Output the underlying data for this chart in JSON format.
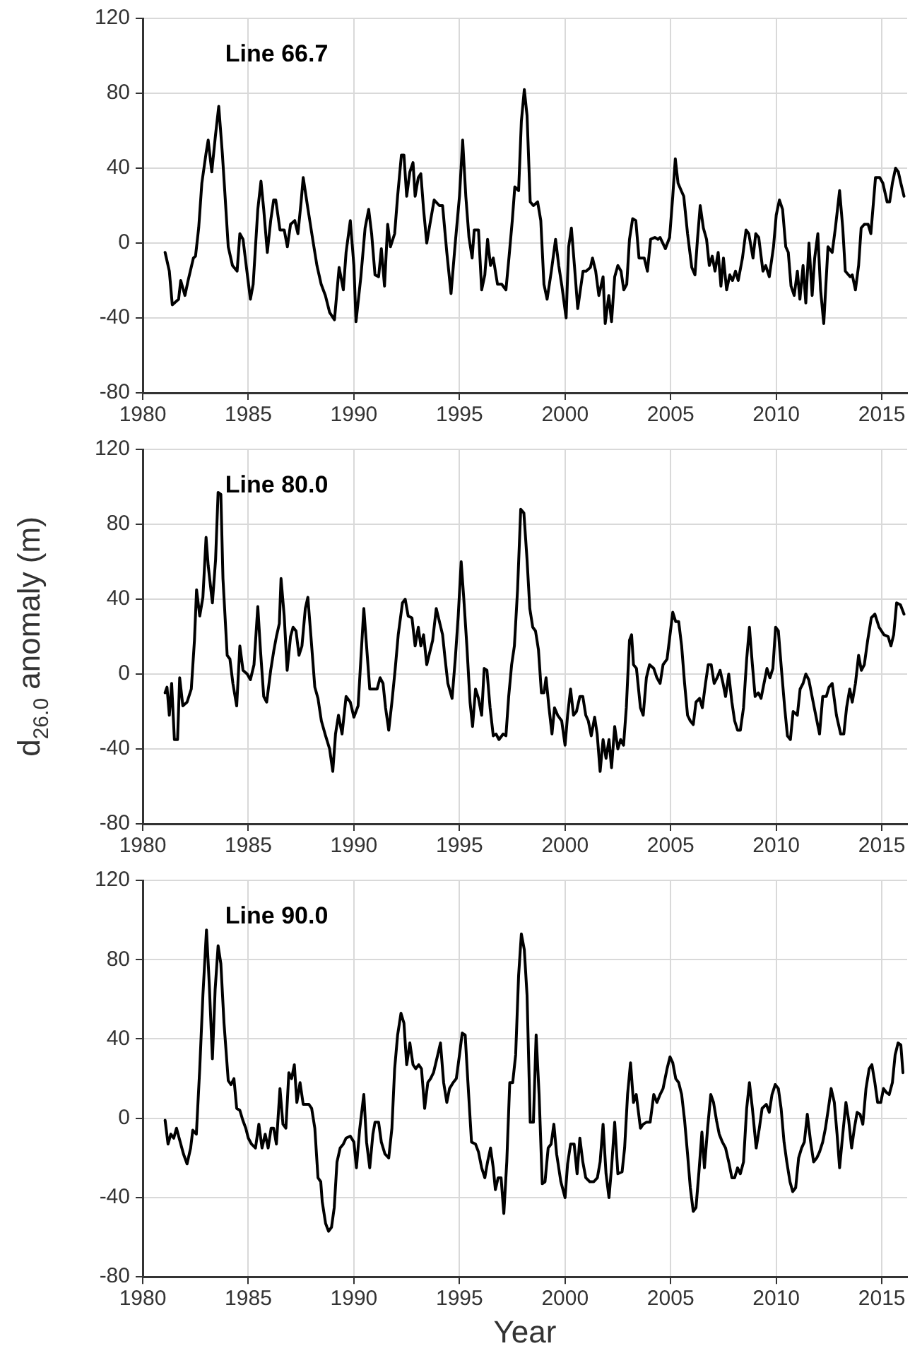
{
  "chart_data": [
    {
      "type": "line",
      "title": "Line 66.7",
      "xlim": [
        1980,
        2016.2
      ],
      "ylim": [
        -80,
        120
      ],
      "xticks": [
        1980,
        1985,
        1990,
        1995,
        2000,
        2005,
        2010,
        2015
      ],
      "yticks": [
        -80,
        -40,
        0,
        40,
        80,
        120
      ],
      "grid": true,
      "series": [
        {
          "color": "#000000",
          "x": [
            1981.06,
            1981.26,
            1981.4,
            1981.7,
            1981.8,
            1982.0,
            1982.15,
            1982.4,
            1982.5,
            1982.65,
            1982.8,
            1983.0,
            1983.1,
            1983.27,
            1983.45,
            1983.6,
            1983.77,
            1983.9,
            1984.05,
            1984.25,
            1984.47,
            1984.6,
            1984.75,
            1984.9,
            1985.1,
            1985.23,
            1985.45,
            1985.6,
            1985.73,
            1985.9,
            1986.06,
            1986.2,
            1986.3,
            1986.5,
            1986.7,
            1986.85,
            1987.0,
            1987.2,
            1987.35,
            1987.5,
            1987.6,
            1987.8,
            1988.05,
            1988.25,
            1988.45,
            1988.65,
            1988.85,
            1989.08,
            1989.3,
            1989.5,
            1989.63,
            1989.83,
            1990.0,
            1990.1,
            1990.33,
            1990.53,
            1990.7,
            1990.84,
            1991.0,
            1991.17,
            1991.3,
            1991.45,
            1991.6,
            1991.73,
            1991.93,
            1992.07,
            1992.25,
            1992.37,
            1992.5,
            1992.65,
            1992.8,
            1992.9,
            1993.05,
            1993.17,
            1993.3,
            1993.45,
            1993.6,
            1993.8,
            1994.05,
            1994.2,
            1994.4,
            1994.6,
            1994.8,
            1995.0,
            1995.15,
            1995.3,
            1995.45,
            1995.6,
            1995.7,
            1995.9,
            1996.05,
            1996.2,
            1996.33,
            1996.47,
            1996.6,
            1996.8,
            1997.0,
            1997.2,
            1997.35,
            1997.5,
            1997.62,
            1997.8,
            1997.93,
            1998.07,
            1998.2,
            1998.35,
            1998.5,
            1998.7,
            1998.85,
            1999.0,
            1999.15,
            1999.35,
            1999.55,
            1999.7,
            1999.85,
            2000.05,
            2000.17,
            2000.3,
            2000.45,
            2000.6,
            2000.85,
            2001.0,
            2001.2,
            2001.3,
            2001.45,
            2001.6,
            2001.8,
            2001.9,
            2002.07,
            2002.2,
            2002.35,
            2002.5,
            2002.65,
            2002.78,
            2002.92,
            2003.05,
            2003.2,
            2003.35,
            2003.5,
            2003.75,
            2003.9,
            2004.05,
            2004.25,
            2004.4,
            2004.5,
            2004.75,
            2004.95,
            2005.1,
            2005.22,
            2005.35,
            2005.5,
            2005.62,
            2005.8,
            2006.0,
            2006.15,
            2006.27,
            2006.4,
            2006.55,
            2006.7,
            2006.83,
            2006.97,
            2007.1,
            2007.25,
            2007.38,
            2007.5,
            2007.65,
            2007.8,
            2007.93,
            2008.07,
            2008.2,
            2008.4,
            2008.57,
            2008.7,
            2008.9,
            2009.03,
            2009.17,
            2009.37,
            2009.5,
            2009.67,
            2009.87,
            2010.0,
            2010.15,
            2010.3,
            2010.45,
            2010.57,
            2010.7,
            2010.85,
            2011.0,
            2011.12,
            2011.27,
            2011.4,
            2011.55,
            2011.7,
            2011.82,
            2011.97,
            2012.1,
            2012.25,
            2012.45,
            2012.65,
            2012.8,
            2013.0,
            2013.15,
            2013.27,
            2013.5,
            2013.6,
            2013.75,
            2013.9,
            2014.02,
            2014.17,
            2014.35,
            2014.48,
            2014.7,
            2014.9,
            2015.05,
            2015.25,
            2015.37,
            2015.5,
            2015.65,
            2015.78,
            2015.9,
            2016.05
          ],
          "values": [
            -5,
            -15,
            -33,
            -30,
            -20,
            -28,
            -20,
            -8,
            -7,
            8,
            32,
            48,
            55,
            38,
            58,
            73,
            48,
            25,
            -2,
            -12,
            -15,
            5,
            2,
            -12,
            -30,
            -22,
            18,
            33,
            18,
            -5,
            12,
            23,
            23,
            7,
            7,
            -2,
            10,
            12,
            5,
            22,
            35,
            20,
            2,
            -12,
            -22,
            -28,
            -37,
            -41,
            -13,
            -25,
            -5,
            12,
            -12,
            -42,
            -18,
            8,
            18,
            5,
            -17,
            -18,
            -3,
            -23,
            10,
            -2,
            5,
            25,
            47,
            47,
            25,
            38,
            43,
            25,
            35,
            37,
            18,
            0,
            10,
            23,
            20,
            20,
            -5,
            -27,
            0,
            25,
            55,
            25,
            3,
            -8,
            7,
            7,
            -25,
            -17,
            2,
            -12,
            -8,
            -22,
            -22,
            -25,
            -7,
            12,
            30,
            28,
            65,
            82,
            68,
            22,
            20,
            22,
            12,
            -22,
            -30,
            -15,
            2,
            -12,
            -23,
            -40,
            -2,
            8,
            -13,
            -35,
            -15,
            -15,
            -13,
            -8,
            -15,
            -28,
            -18,
            -43,
            -28,
            -42,
            -18,
            -12,
            -15,
            -25,
            -22,
            2,
            13,
            12,
            -8,
            -8,
            -15,
            2,
            3,
            2,
            3,
            -3,
            3,
            25,
            45,
            32,
            28,
            25,
            5,
            -13,
            -17,
            2,
            20,
            8,
            2,
            -12,
            -7,
            -15,
            -5,
            -23,
            -8,
            -25,
            -17,
            -20,
            -15,
            -20,
            -8,
            7,
            5,
            -8,
            5,
            3,
            -15,
            -12,
            -18,
            -2,
            15,
            23,
            18,
            -2,
            -5,
            -23,
            -28,
            -15,
            -30,
            -12,
            -32,
            0,
            -28,
            -8,
            5,
            -25,
            -43,
            -2,
            -5,
            8,
            28,
            8,
            -15,
            -18,
            -17,
            -25,
            -12,
            8,
            10,
            10,
            5,
            35,
            35,
            32,
            22,
            22,
            32,
            40,
            38,
            32,
            25
          ]
        }
      ]
    },
    {
      "type": "line",
      "title": "Line 80.0",
      "ylabel": "d$_{26.0}$ anomaly (m)",
      "xlim": [
        1980,
        2016.2
      ],
      "ylim": [
        -80,
        120
      ],
      "xticks": [
        1980,
        1985,
        1990,
        1995,
        2000,
        2005,
        2010,
        2015
      ],
      "yticks": [
        -80,
        -40,
        0,
        40,
        80,
        120
      ],
      "grid": true,
      "series": [
        {
          "color": "#000000",
          "x": [
            1981.06,
            1981.15,
            1981.26,
            1981.37,
            1981.5,
            1981.65,
            1981.75,
            1981.9,
            1982.1,
            1982.3,
            1982.45,
            1982.55,
            1982.7,
            1982.85,
            1983.0,
            1983.1,
            1983.3,
            1983.45,
            1983.57,
            1983.7,
            1983.8,
            1984.0,
            1984.13,
            1984.27,
            1984.45,
            1984.6,
            1984.75,
            1984.95,
            1985.1,
            1985.27,
            1985.45,
            1985.58,
            1985.73,
            1985.87,
            1986.06,
            1986.2,
            1986.33,
            1986.47,
            1986.55,
            1986.7,
            1986.84,
            1987.0,
            1987.12,
            1987.26,
            1987.4,
            1987.54,
            1987.7,
            1987.82,
            1987.96,
            1988.15,
            1988.3,
            1988.46,
            1988.66,
            1988.85,
            1989.0,
            1989.13,
            1989.27,
            1989.44,
            1989.63,
            1989.83,
            1990.0,
            1990.2,
            1990.33,
            1990.47,
            1990.6,
            1990.75,
            1990.95,
            1991.1,
            1991.24,
            1991.38,
            1991.5,
            1991.65,
            1991.8,
            1991.95,
            1992.1,
            1992.3,
            1992.43,
            1992.57,
            1992.75,
            1992.9,
            1993.05,
            1993.17,
            1993.3,
            1993.45,
            1993.6,
            1993.73,
            1993.9,
            1994.05,
            1994.2,
            1994.32,
            1994.45,
            1994.65,
            1994.8,
            1994.94,
            1995.08,
            1995.2,
            1995.35,
            1995.5,
            1995.62,
            1995.76,
            1995.9,
            1996.05,
            1996.17,
            1996.3,
            1996.45,
            1996.6,
            1996.73,
            1996.87,
            1997.07,
            1997.2,
            1997.33,
            1997.47,
            1997.6,
            1997.75,
            1997.9,
            1998.05,
            1998.2,
            1998.33,
            1998.47,
            1998.6,
            1998.74,
            1998.88,
            1999.0,
            1999.1,
            1999.24,
            1999.38,
            1999.5,
            1999.65,
            1999.84,
            2000.0,
            2000.12,
            2000.26,
            2000.4,
            2000.54,
            2000.7,
            2000.84,
            2000.98,
            2001.1,
            2001.24,
            2001.4,
            2001.52,
            2001.66,
            2001.8,
            2001.94,
            2002.08,
            2002.2,
            2002.35,
            2002.5,
            2002.63,
            2002.77,
            2002.9,
            2003.05,
            2003.15,
            2003.24,
            2003.38,
            2003.57,
            2003.7,
            2003.85,
            2004.0,
            2004.2,
            2004.35,
            2004.5,
            2004.64,
            2004.83,
            2004.97,
            2005.1,
            2005.24,
            2005.38,
            2005.52,
            2005.66,
            2005.8,
            2005.93,
            2006.07,
            2006.2,
            2006.37,
            2006.5,
            2006.65,
            2006.78,
            2006.92,
            2007.06,
            2007.2,
            2007.34,
            2007.48,
            2007.6,
            2007.75,
            2007.9,
            2008.03,
            2008.17,
            2008.3,
            2008.45,
            2008.6,
            2008.73,
            2008.87,
            2009.0,
            2009.15,
            2009.28,
            2009.42,
            2009.56,
            2009.7,
            2009.84,
            2009.97,
            2010.1,
            2010.25,
            2010.4,
            2010.53,
            2010.67,
            2010.8,
            2011.0,
            2011.13,
            2011.27,
            2011.4,
            2011.54,
            2011.8,
            2012.05,
            2012.2,
            2012.37,
            2012.5,
            2012.65,
            2012.85,
            2013.05,
            2013.2,
            2013.33,
            2013.48,
            2013.6,
            2013.75,
            2013.9,
            2014.03,
            2014.17,
            2014.33,
            2014.5,
            2014.67,
            2014.87,
            2015.1,
            2015.3,
            2015.43,
            2015.56,
            2015.7,
            2015.88,
            2016.05
          ],
          "values": [
            -10,
            -7,
            -22,
            -5,
            -35,
            -35,
            -2,
            -17,
            -15,
            -8,
            18,
            45,
            31,
            41,
            73,
            58,
            38,
            61,
            97,
            96,
            51,
            10,
            8,
            -5,
            -17,
            15,
            2,
            0,
            -3,
            5,
            36,
            12,
            -12,
            -15,
            2,
            12,
            20,
            27,
            51,
            31,
            2,
            20,
            25,
            23,
            10,
            15,
            35,
            41,
            21,
            -7,
            -13,
            -25,
            -33,
            -40,
            -52,
            -32,
            -22,
            -32,
            -12,
            -15,
            -23,
            -17,
            8,
            35,
            15,
            -8,
            -8,
            -8,
            -2,
            -5,
            -18,
            -30,
            -15,
            2,
            21,
            38,
            40,
            31,
            30,
            15,
            25,
            15,
            21,
            5,
            12,
            18,
            35,
            28,
            21,
            8,
            -5,
            -13,
            8,
            31,
            60,
            41,
            15,
            -15,
            -28,
            -8,
            -13,
            -22,
            3,
            2,
            -18,
            -33,
            -32,
            -35,
            -32,
            -33,
            -12,
            5,
            15,
            45,
            88,
            86,
            61,
            35,
            25,
            23,
            13,
            -10,
            -10,
            -2,
            -18,
            -32,
            -18,
            -22,
            -25,
            -38,
            -22,
            -8,
            -22,
            -20,
            -12,
            -12,
            -22,
            -25,
            -33,
            -23,
            -32,
            -52,
            -35,
            -45,
            -35,
            -50,
            -28,
            -40,
            -35,
            -38,
            -18,
            18,
            21,
            5,
            3,
            -18,
            -22,
            -2,
            5,
            3,
            -2,
            -5,
            5,
            8,
            21,
            33,
            28,
            28,
            15,
            -5,
            -22,
            -25,
            -27,
            -15,
            -13,
            -18,
            -5,
            5,
            5,
            -5,
            -2,
            2,
            -5,
            -12,
            0,
            -15,
            -25,
            -30,
            -30,
            -18,
            8,
            25,
            5,
            -12,
            -10,
            -13,
            -5,
            3,
            -2,
            3,
            25,
            23,
            2,
            -18,
            -33,
            -35,
            -20,
            -22,
            -8,
            -5,
            0,
            -3,
            -18,
            -32,
            -12,
            -12,
            -7,
            -5,
            -22,
            -32,
            -32,
            -18,
            -8,
            -15,
            -5,
            10,
            2,
            5,
            18,
            30,
            32,
            25,
            21,
            20,
            15,
            21,
            38,
            37,
            32
          ]
        }
      ]
    },
    {
      "type": "line",
      "title": "Line 90.0",
      "xlabel": "Year",
      "xlim": [
        1980,
        2016.2
      ],
      "ylim": [
        -80,
        120
      ],
      "xticks": [
        1980,
        1985,
        1990,
        1995,
        2000,
        2005,
        2010,
        2015
      ],
      "yticks": [
        -80,
        -40,
        0,
        40,
        80,
        120
      ],
      "grid": true,
      "series": [
        {
          "color": "#000000",
          "x": [
            1981.06,
            1981.2,
            1981.33,
            1981.47,
            1981.6,
            1981.75,
            1981.93,
            1982.1,
            1982.27,
            1982.37,
            1982.54,
            1982.7,
            1982.85,
            1983.02,
            1983.15,
            1983.3,
            1983.43,
            1983.57,
            1983.7,
            1983.85,
            1984.05,
            1984.18,
            1984.32,
            1984.45,
            1984.6,
            1984.74,
            1984.88,
            1985.0,
            1985.15,
            1985.34,
            1985.5,
            1985.65,
            1985.8,
            1985.94,
            1986.08,
            1986.2,
            1986.33,
            1986.5,
            1986.64,
            1986.78,
            1986.92,
            1987.05,
            1987.18,
            1987.3,
            1987.45,
            1987.6,
            1987.73,
            1987.87,
            1988.0,
            1988.15,
            1988.3,
            1988.43,
            1988.5,
            1988.66,
            1988.8,
            1988.94,
            1989.07,
            1989.2,
            1989.35,
            1989.5,
            1989.63,
            1989.83,
            1990.0,
            1990.12,
            1990.27,
            1990.47,
            1990.6,
            1990.75,
            1990.9,
            1991.0,
            1991.17,
            1991.3,
            1991.47,
            1991.65,
            1991.8,
            1991.93,
            1992.07,
            1992.23,
            1992.37,
            1992.5,
            1992.65,
            1992.8,
            1992.93,
            1993.07,
            1993.2,
            1993.35,
            1993.5,
            1993.63,
            1993.77,
            1993.97,
            1994.1,
            1994.25,
            1994.4,
            1994.53,
            1994.7,
            1994.85,
            1995.0,
            1995.13,
            1995.27,
            1995.4,
            1995.57,
            1995.76,
            1995.9,
            1996.05,
            1996.2,
            1996.33,
            1996.47,
            1996.6,
            1996.7,
            1996.83,
            1996.97,
            1997.1,
            1997.24,
            1997.38,
            1997.52,
            1997.66,
            1997.8,
            1997.93,
            1998.07,
            1998.2,
            1998.35,
            1998.5,
            1998.63,
            1998.77,
            1998.92,
            1999.05,
            1999.2,
            1999.34,
            1999.47,
            1999.6,
            1999.8,
            2000.0,
            2000.12,
            2000.26,
            2000.43,
            2000.57,
            2000.7,
            2000.84,
            2000.98,
            2001.17,
            2001.36,
            2001.53,
            2001.66,
            2001.8,
            2001.94,
            2002.08,
            2002.2,
            2002.35,
            2002.5,
            2002.7,
            2002.82,
            2002.96,
            2003.1,
            2003.24,
            2003.37,
            2003.57,
            2003.7,
            2003.85,
            2004.03,
            2004.2,
            2004.35,
            2004.5,
            2004.64,
            2004.83,
            2004.97,
            2005.1,
            2005.24,
            2005.38,
            2005.52,
            2005.66,
            2005.8,
            2005.93,
            2006.07,
            2006.2,
            2006.34,
            2006.48,
            2006.6,
            2006.75,
            2006.9,
            2007.03,
            2007.17,
            2007.3,
            2007.45,
            2007.6,
            2007.75,
            2007.9,
            2008.03,
            2008.17,
            2008.3,
            2008.45,
            2008.6,
            2008.73,
            2008.87,
            2009.05,
            2009.2,
            2009.33,
            2009.53,
            2009.67,
            2009.8,
            2009.95,
            2010.1,
            2010.23,
            2010.37,
            2010.5,
            2010.65,
            2010.78,
            2010.92,
            2011.06,
            2011.2,
            2011.33,
            2011.47,
            2011.63,
            2011.77,
            2011.92,
            2012.05,
            2012.2,
            2012.33,
            2012.47,
            2012.6,
            2012.75,
            2012.88,
            2013.0,
            2013.15,
            2013.3,
            2013.43,
            2013.57,
            2013.7,
            2013.83,
            2013.97,
            2014.1,
            2014.25,
            2014.4,
            2014.53,
            2014.67,
            2014.8,
            2014.95,
            2015.08,
            2015.22,
            2015.35,
            2015.5,
            2015.63,
            2015.77,
            2015.9,
            2016.0
          ],
          "values": [
            -1,
            -13,
            -8,
            -10,
            -5,
            -11,
            -18,
            -23,
            -15,
            -6,
            -8,
            25,
            62,
            95,
            68,
            30,
            65,
            87,
            78,
            48,
            19,
            17,
            20,
            5,
            4,
            -1,
            -5,
            -10,
            -13,
            -15,
            -3,
            -15,
            -8,
            -15,
            -5,
            -5,
            -13,
            15,
            -3,
            -5,
            23,
            20,
            27,
            8,
            18,
            7,
            7,
            7,
            5,
            -5,
            -30,
            -32,
            -42,
            -53,
            -57,
            -55,
            -45,
            -22,
            -15,
            -13,
            -10,
            -9,
            -12,
            -25,
            -6,
            12,
            -12,
            -25,
            -8,
            -2,
            -2,
            -12,
            -18,
            -20,
            -5,
            25,
            42,
            53,
            48,
            27,
            38,
            27,
            25,
            27,
            25,
            5,
            18,
            20,
            23,
            32,
            38,
            18,
            8,
            15,
            18,
            20,
            32,
            43,
            42,
            18,
            -12,
            -13,
            -17,
            -25,
            -30,
            -22,
            -15,
            -25,
            -36,
            -30,
            -30,
            -48,
            -22,
            18,
            18,
            32,
            72,
            93,
            85,
            62,
            -2,
            -2,
            42,
            12,
            -33,
            -32,
            -15,
            -13,
            -3,
            -18,
            -32,
            -40,
            -23,
            -13,
            -13,
            -28,
            -10,
            -22,
            -30,
            -32,
            -32,
            -30,
            -22,
            -3,
            -28,
            -40,
            -25,
            -2,
            -28,
            -27,
            -15,
            12,
            28,
            8,
            12,
            -5,
            -3,
            -2,
            -2,
            12,
            8,
            12,
            15,
            25,
            31,
            28,
            20,
            18,
            12,
            -1,
            -18,
            -35,
            -47,
            -45,
            -27,
            -7,
            -25,
            -5,
            12,
            8,
            -1,
            -8,
            -12,
            -15,
            -22,
            -30,
            -30,
            -25,
            -28,
            -22,
            5,
            18,
            5,
            -15,
            -5,
            5,
            7,
            3,
            12,
            17,
            15,
            5,
            -12,
            -22,
            -32,
            -37,
            -35,
            -20,
            -15,
            -12,
            2,
            -12,
            -22,
            -20,
            -17,
            -12,
            -5,
            5,
            15,
            8,
            -8,
            -25,
            -8,
            8,
            -1,
            -15,
            -5,
            3,
            2,
            -3,
            15,
            25,
            27,
            18,
            8,
            8,
            15,
            13,
            12,
            18,
            32,
            38,
            37,
            23
          ]
        }
      ]
    }
  ]
}
